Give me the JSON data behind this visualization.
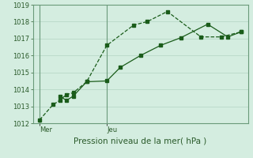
{
  "title": "",
  "xlabel": "Pression niveau de la mer( hPa )",
  "background_color": "#d4ede0",
  "grid_color": "#b8d8c8",
  "line_color": "#1a5c1a",
  "ylim": [
    1012,
    1019
  ],
  "yticks": [
    1012,
    1013,
    1014,
    1015,
    1016,
    1017,
    1018,
    1019
  ],
  "xlim": [
    0,
    16
  ],
  "day_labels": [
    "Mer",
    "Jeu"
  ],
  "day_positions": [
    0.5,
    5.5
  ],
  "vline_positions": [
    0.5,
    5.5
  ],
  "series1_x": [
    0.5,
    1.5,
    2.0,
    2.5,
    3.0,
    4.0,
    5.5,
    7.5,
    8.5,
    10.0,
    12.5,
    14.0,
    15.5
  ],
  "series1_y": [
    1012.2,
    1013.1,
    1013.35,
    1013.7,
    1013.8,
    1014.45,
    1016.6,
    1017.8,
    1018.0,
    1018.6,
    1017.1,
    1017.1,
    1017.4
  ],
  "series2_x": [
    2.0,
    2.5,
    3.0,
    4.0,
    5.5,
    6.5,
    8.0,
    9.5,
    11.0,
    13.0,
    14.5,
    15.5
  ],
  "series2_y": [
    1013.6,
    1013.35,
    1013.6,
    1014.45,
    1014.5,
    1015.3,
    1016.0,
    1016.6,
    1017.05,
    1017.85,
    1017.1,
    1017.4
  ],
  "xlabel_fontsize": 7.5,
  "tick_fontsize": 6,
  "tick_color": "#2a5a2a"
}
